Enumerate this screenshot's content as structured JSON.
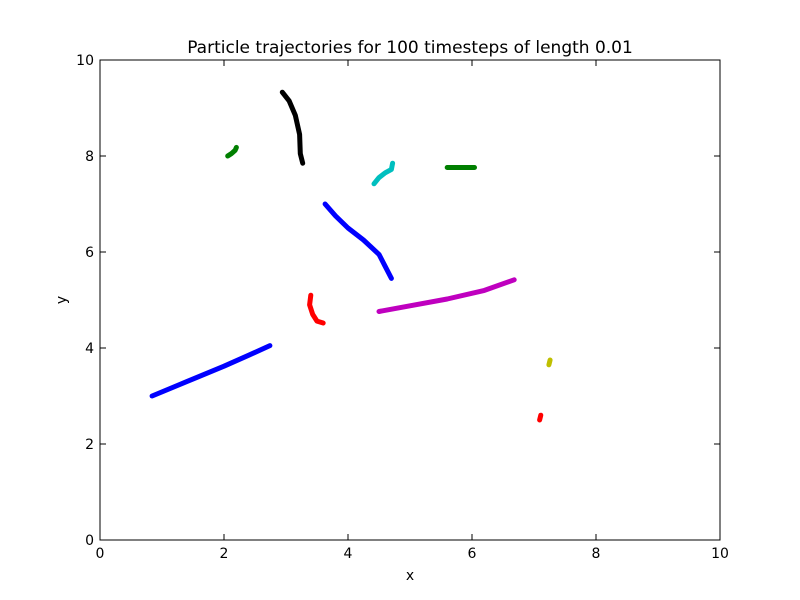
{
  "chart_data": {
    "type": "line",
    "title": "Particle trajectories for 100 timesteps of length 0.01",
    "xlabel": "x",
    "ylabel": "y",
    "xlim": [
      0,
      10
    ],
    "ylim": [
      0,
      10
    ],
    "xticks": [
      "0",
      "2",
      "4",
      "6",
      "8",
      "10"
    ],
    "yticks": [
      "0",
      "2",
      "4",
      "6",
      "8",
      "10"
    ],
    "grid": false,
    "legend": "none",
    "series": [
      {
        "color": "#0000ff",
        "x": [
          0.84,
          1.4,
          2.0,
          2.4,
          2.74
        ],
        "y": [
          3.0,
          3.3,
          3.62,
          3.85,
          4.05
        ]
      },
      {
        "color": "#0000ff",
        "x": [
          3.63,
          3.8,
          4.0,
          4.25,
          4.5,
          4.7
        ],
        "y": [
          7.0,
          6.75,
          6.5,
          6.25,
          5.95,
          5.45
        ]
      },
      {
        "color": "#007f00",
        "x": [
          2.06,
          2.12,
          2.18,
          2.2
        ],
        "y": [
          8.0,
          8.05,
          8.12,
          8.18
        ]
      },
      {
        "color": "#007f00",
        "x": [
          5.6,
          5.8,
          6.04
        ],
        "y": [
          7.76,
          7.76,
          7.76
        ]
      },
      {
        "color": "#000000",
        "x": [
          2.94,
          3.05,
          3.15,
          3.22,
          3.23,
          3.27
        ],
        "y": [
          9.33,
          9.15,
          8.85,
          8.45,
          8.05,
          7.85
        ]
      },
      {
        "color": "#00bfbf",
        "x": [
          4.42,
          4.5,
          4.6,
          4.7,
          4.72
        ],
        "y": [
          7.42,
          7.55,
          7.65,
          7.72,
          7.85
        ]
      },
      {
        "color": "#bf00bf",
        "x": [
          4.5,
          5.0,
          5.6,
          6.2,
          6.68
        ],
        "y": [
          4.76,
          4.88,
          5.02,
          5.2,
          5.42
        ]
      },
      {
        "color": "#ff0000",
        "x": [
          3.4,
          3.38,
          3.43,
          3.5,
          3.6
        ],
        "y": [
          5.1,
          4.9,
          4.7,
          4.56,
          4.52
        ]
      },
      {
        "color": "#ff0000",
        "x": [
          7.09,
          7.1,
          7.11
        ],
        "y": [
          2.5,
          2.55,
          2.6
        ]
      },
      {
        "color": "#bfbf00",
        "x": [
          7.24,
          7.25,
          7.26
        ],
        "y": [
          3.65,
          3.7,
          3.75
        ]
      }
    ]
  }
}
